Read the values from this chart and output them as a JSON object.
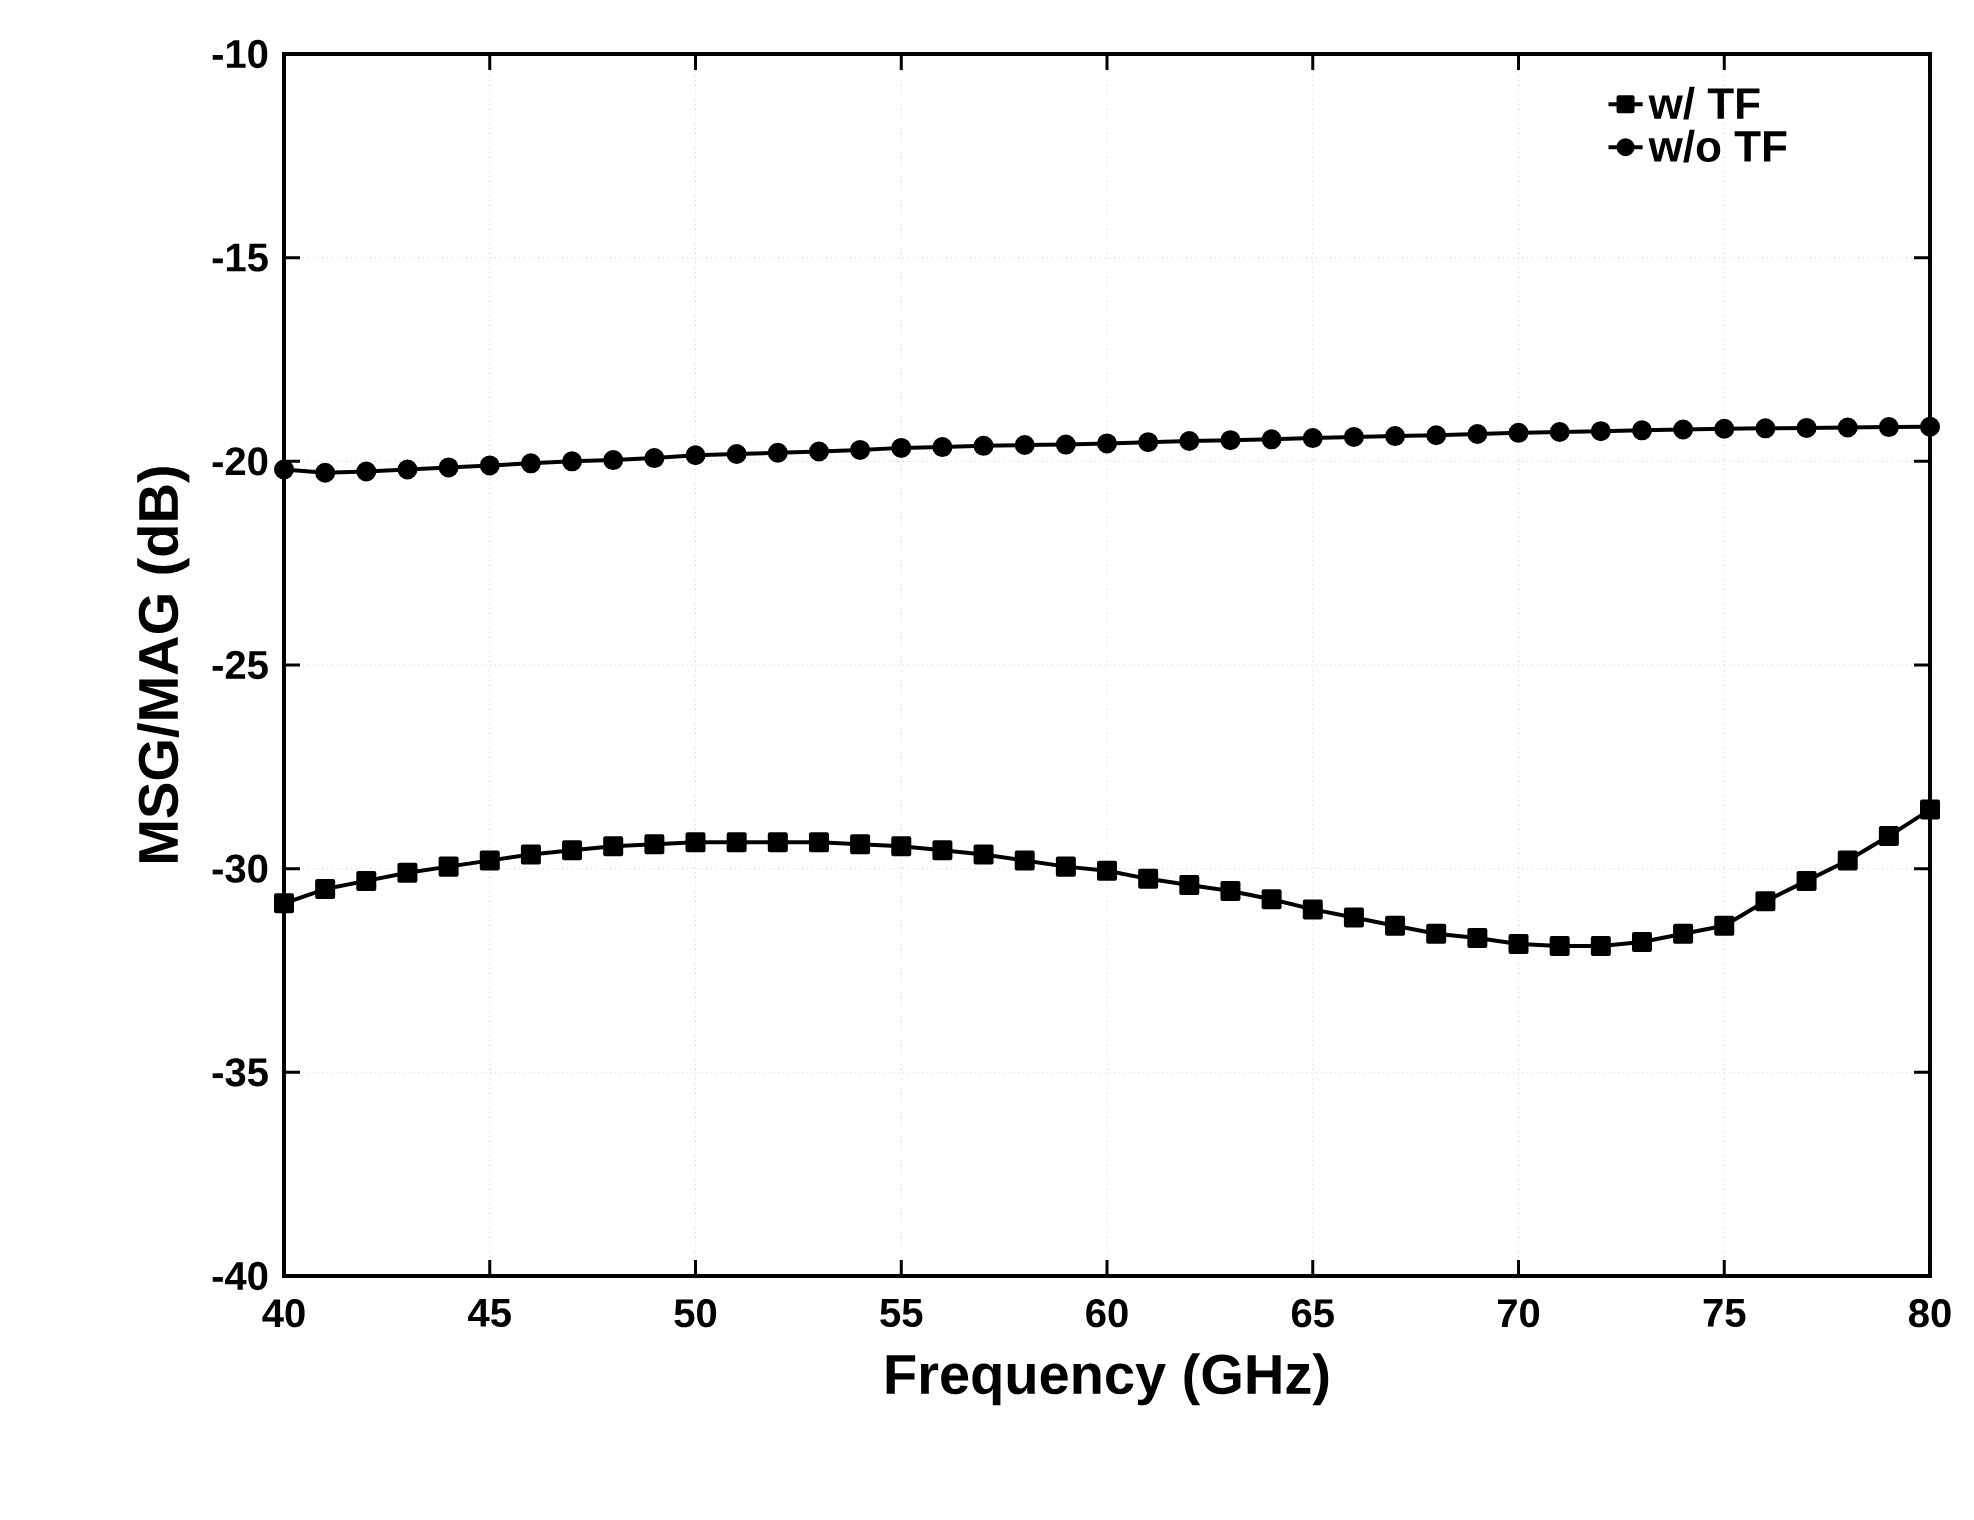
{
  "chart_data": {
    "type": "line",
    "xlabel": "Frequency (GHz)",
    "ylabel": "MSG/MAG (dB)",
    "x": [
      40,
      41,
      42,
      43,
      44,
      45,
      46,
      47,
      48,
      49,
      50,
      51,
      52,
      53,
      54,
      55,
      56,
      57,
      58,
      59,
      60,
      61,
      62,
      63,
      64,
      65,
      66,
      67,
      68,
      69,
      70,
      71,
      72,
      73,
      74,
      75,
      76,
      77,
      78,
      79,
      80
    ],
    "series": [
      {
        "name": "w/ TF",
        "color": "#000000",
        "marker": "square",
        "values": [
          -30.85,
          -30.5,
          -30.3,
          -30.1,
          -29.95,
          -29.8,
          -29.65,
          -29.55,
          -29.45,
          -29.4,
          -29.35,
          -29.35,
          -29.35,
          -29.35,
          -29.4,
          -29.45,
          -29.55,
          -29.65,
          -29.8,
          -29.95,
          -30.05,
          -30.25,
          -30.4,
          -30.55,
          -30.75,
          -31.0,
          -31.2,
          -31.4,
          -31.6,
          -31.7,
          -31.85,
          -31.9,
          -31.9,
          -31.8,
          -31.6,
          -31.4,
          -30.8,
          -30.3,
          -29.8,
          -29.2,
          -28.55
        ]
      },
      {
        "name": "w/o TF",
        "color": "#000000",
        "marker": "circle",
        "values": [
          -20.2,
          -20.28,
          -20.25,
          -20.2,
          -20.15,
          -20.1,
          -20.05,
          -20.0,
          -19.97,
          -19.92,
          -19.85,
          -19.82,
          -19.79,
          -19.76,
          -19.72,
          -19.67,
          -19.65,
          -19.62,
          -19.6,
          -19.59,
          -19.56,
          -19.53,
          -19.5,
          -19.48,
          -19.46,
          -19.43,
          -19.4,
          -19.38,
          -19.36,
          -19.33,
          -19.3,
          -19.28,
          -19.26,
          -19.24,
          -19.22,
          -19.2,
          -19.19,
          -19.18,
          -19.17,
          -19.16,
          -19.15
        ]
      }
    ],
    "xlim": [
      40,
      80
    ],
    "ylim": [
      -40,
      -10
    ],
    "xticks": [
      40,
      45,
      50,
      55,
      60,
      65,
      70,
      75,
      80
    ],
    "yticks": [
      -40,
      -35,
      -30,
      -25,
      -20,
      -15,
      -10
    ],
    "grid": true,
    "legend": "top right",
    "line_style": "solid"
  }
}
